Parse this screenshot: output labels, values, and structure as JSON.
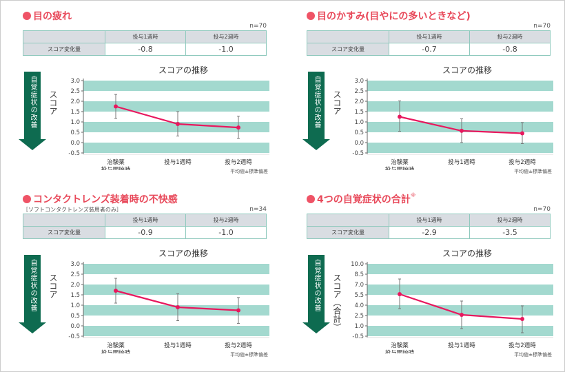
{
  "common": {
    "table_col1": "投与1週時",
    "table_col2": "投与2週時",
    "row_label": "スコア変化量",
    "chart_title": "スコアの推移",
    "arrow_label": "自覚症状の改善",
    "footnote": "平均値±標準偏差"
  },
  "panels": [
    {
      "title": "目の疲れ",
      "subtitle": "",
      "note": "",
      "n": "n=70",
      "changes": [
        "-0.8",
        "-1.0"
      ],
      "ylabel": "スコア"
    },
    {
      "title": "目のかすみ(目やにの多いときなど)",
      "subtitle": "",
      "note": "",
      "n": "n=70",
      "changes": [
        "-0.7",
        "-0.8"
      ],
      "ylabel": "スコア"
    },
    {
      "title": "コンタクトレンズ装着時の不快感",
      "subtitle": "［ソフトコンタクトレンズ装用者のみ］",
      "note": "",
      "n": "n=34",
      "changes": [
        "-0.9",
        "-1.0"
      ],
      "ylabel": "スコア"
    },
    {
      "title": "4つの自覚症状の合計",
      "subtitle": "",
      "note": "※",
      "n": "n=70",
      "changes": [
        "-2.9",
        "-3.5"
      ],
      "ylabel": "スコア（合計）"
    }
  ],
  "chart_data": [
    {
      "type": "line",
      "title": "スコアの推移",
      "ylabel": "スコア",
      "categories": [
        "治験薬\n投与開始時",
        "投与1週時",
        "投与2週時"
      ],
      "values": [
        1.75,
        0.9,
        0.73
      ],
      "error_low": [
        1.17,
        0.32,
        0.2
      ],
      "error_high": [
        2.33,
        1.5,
        1.28
      ],
      "ylim": [
        -0.5,
        3.0
      ],
      "yticks": [
        "3.0",
        "2.5",
        "2.0",
        "1.5",
        "1.0",
        "0.5",
        "0.0",
        "-0.5"
      ],
      "ystep": 0.5,
      "color": "#e8185e",
      "band_color": "#a3d9cf"
    },
    {
      "type": "line",
      "title": "スコアの推移",
      "ylabel": "スコア",
      "categories": [
        "治験薬\n投与開始時",
        "投与1週時",
        "投与2週時"
      ],
      "values": [
        1.25,
        0.57,
        0.45
      ],
      "error_low": [
        0.55,
        0.0,
        -0.05
      ],
      "error_high": [
        2.02,
        1.15,
        0.97
      ],
      "ylim": [
        -0.5,
        3.0
      ],
      "yticks": [
        "3.0",
        "2.5",
        "2.0",
        "1.5",
        "1.0",
        "0.5",
        "0.0",
        "-0.5"
      ],
      "ystep": 0.5,
      "color": "#e8185e",
      "band_color": "#a3d9cf"
    },
    {
      "type": "line",
      "title": "スコアの推移",
      "ylabel": "スコア",
      "categories": [
        "治験薬\n投与開始時",
        "投与1週時",
        "投与2週時"
      ],
      "values": [
        1.7,
        0.9,
        0.75
      ],
      "error_low": [
        1.1,
        0.25,
        0.12
      ],
      "error_high": [
        2.3,
        1.55,
        1.37
      ],
      "ylim": [
        -0.5,
        3.0
      ],
      "yticks": [
        "3.0",
        "2.5",
        "2.0",
        "1.5",
        "1.0",
        "0.5",
        "0.0",
        "-0.5"
      ],
      "ystep": 0.5,
      "color": "#e8185e",
      "band_color": "#a3d9cf"
    },
    {
      "type": "line",
      "title": "スコアの推移",
      "ylabel": "スコア（合計）",
      "categories": [
        "治験薬\n投与開始時",
        "投与1週時",
        "投与2週時"
      ],
      "values": [
        5.6,
        2.6,
        2.0
      ],
      "error_low": [
        3.5,
        0.6,
        0.0
      ],
      "error_high": [
        7.8,
        4.6,
        3.9
      ],
      "ylim": [
        -0.5,
        10.0
      ],
      "yticks": [
        "10.0",
        "8.5",
        "7.0",
        "5.5",
        "4.0",
        "2.5",
        "1.0",
        "-0.5"
      ],
      "ystep": 1.5,
      "color": "#e8185e",
      "band_color": "#a3d9cf"
    }
  ]
}
